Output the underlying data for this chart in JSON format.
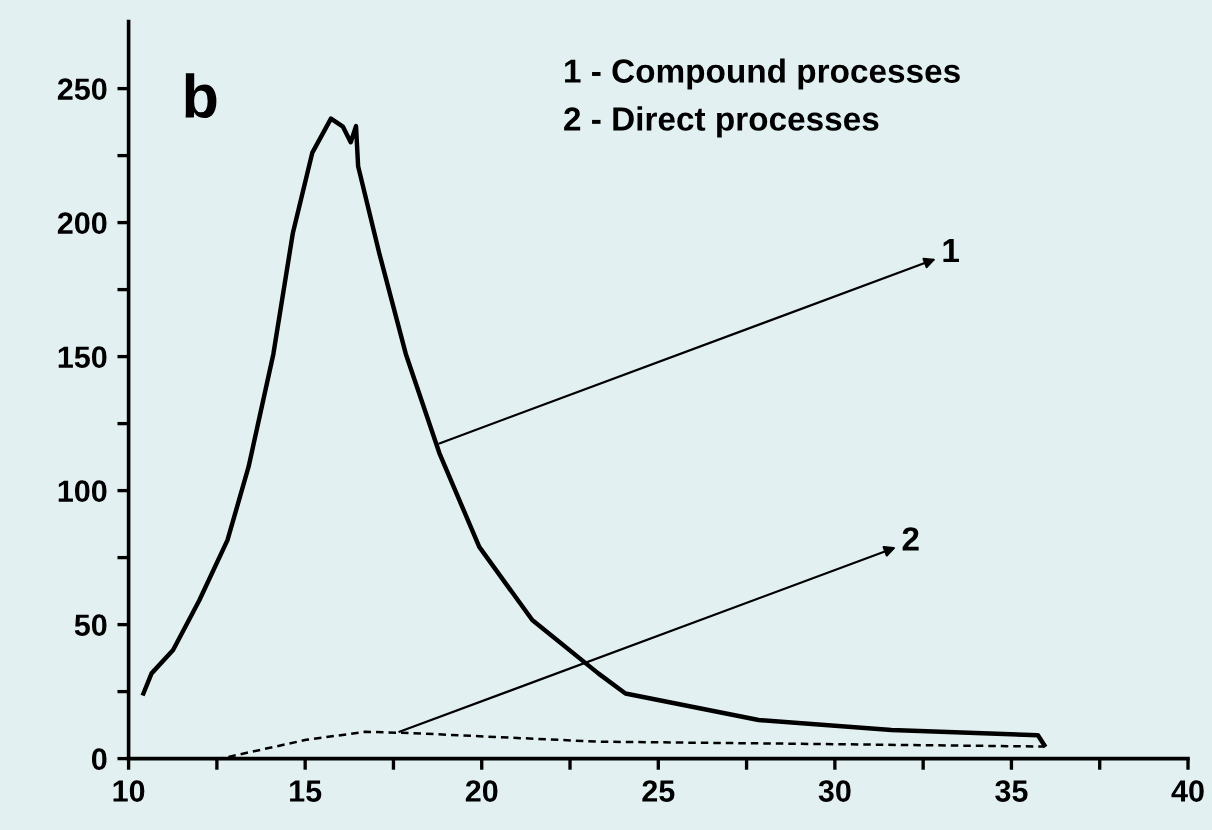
{
  "chart_data": {
    "type": "line",
    "xlim": [
      10,
      40
    ],
    "ylim": [
      0,
      275
    ],
    "xticks": [
      10,
      {
        "value": 12.5,
        "label": null
      },
      15,
      {
        "value": 17.5,
        "label": null
      },
      20,
      {
        "value": 22.5,
        "label": null
      },
      25,
      {
        "value": 27.5,
        "label": null
      },
      30,
      {
        "value": 32.5,
        "label": null
      },
      35,
      {
        "value": 37.5,
        "label": null
      },
      40
    ],
    "yticks": [
      0,
      {
        "value": 25,
        "label": null
      },
      50,
      {
        "value": 75,
        "label": null
      },
      100,
      {
        "value": 125,
        "label": null
      },
      150,
      {
        "value": 175,
        "label": null
      },
      200,
      {
        "value": 225,
        "label": null
      },
      250
    ],
    "grid": false,
    "legend": false,
    "marker": "none",
    "series": [
      {
        "color": "#000000",
        "line_style": "solid",
        "x": [
          10.42,
          10.65,
          11.26,
          12.0,
          12.8,
          13.4,
          14.1,
          14.65,
          15.2,
          15.73,
          16.07,
          16.29,
          16.44,
          16.5,
          17.1,
          17.85,
          18.8,
          19.93,
          21.43,
          23.3,
          24.07,
          27.84,
          31.6,
          35.75,
          35.93
        ],
        "values": [
          24.3,
          31.8,
          40.5,
          59,
          81.5,
          109,
          151,
          196,
          226,
          238.8,
          235.8,
          230,
          236,
          221,
          188.5,
          151,
          114,
          79,
          51.7,
          31.8,
          24.3,
          14.4,
          10.7,
          8.7,
          5
        ]
      },
      {
        "color": "#000000",
        "line_style": "dashed",
        "x": [
          10,
          12.6,
          15.03,
          16.7,
          18.05,
          23.3,
          27.8,
          35.93
        ],
        "values": [
          0,
          0,
          7,
          10,
          9.5,
          6.3,
          5.7,
          4.5
        ]
      }
    ],
    "annotations": [
      "b",
      "1 - Compound processes",
      "2 - Direct processes",
      {
        "text": "1",
        "x": 18.8,
        "y": 117.6
      },
      {
        "text": "2",
        "x": 17.67,
        "y": 10
      }
    ]
  }
}
